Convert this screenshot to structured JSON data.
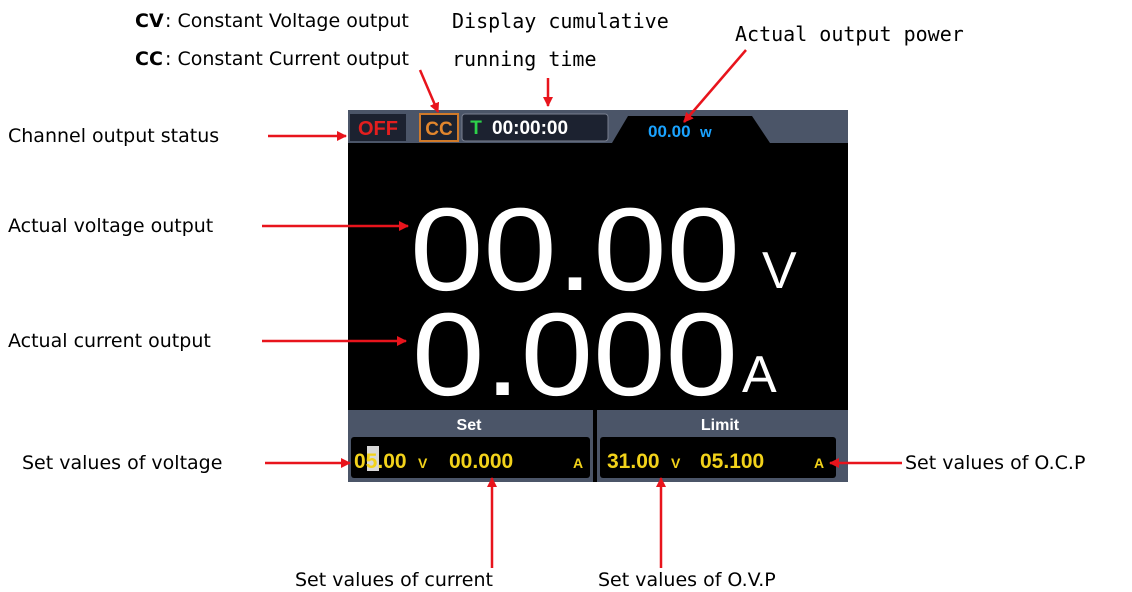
{
  "annotations": {
    "cv_label": "CV",
    "cv_text": ": Constant Voltage output",
    "cc_label": "CC",
    "cc_text": ": Constant Current output",
    "running_time": [
      "Display cumulative",
      "running time"
    ],
    "output_power": "Actual output power",
    "channel_status": "Channel output status",
    "voltage_output": "Actual voltage output",
    "current_output": "Actual current output",
    "set_voltage": "Set values of voltage",
    "set_current": "Set values of current",
    "set_ovp": "Set values of O.V.P",
    "set_ocp": "Set values of O.C.P"
  },
  "screen": {
    "status": "OFF",
    "mode": "CC",
    "timer_label": "T",
    "timer": "00:00:00",
    "power": "00.00",
    "power_unit": "w",
    "voltage": "00.00",
    "voltage_unit": "V",
    "current": "0.000",
    "current_unit": "A",
    "set": {
      "title": "Set",
      "voltage": "05.00",
      "voltage_unit": "V",
      "current": "00.000",
      "current_unit": "A"
    },
    "limit": {
      "title": "Limit",
      "voltage": "31.00",
      "voltage_unit": "V",
      "current": "05.100",
      "current_unit": "A"
    }
  }
}
